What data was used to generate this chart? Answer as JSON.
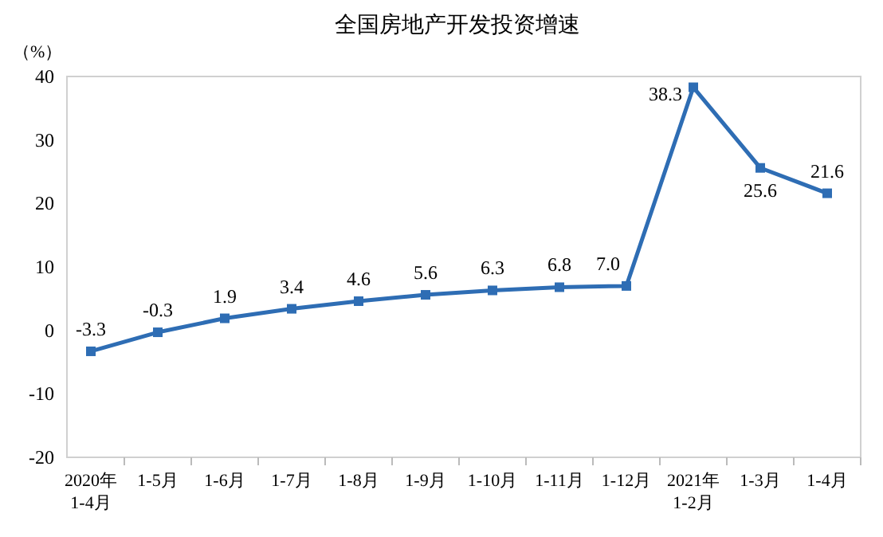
{
  "chart_data": {
    "type": "line",
    "title": "全国房地产开发投资增速",
    "ylabel": "（%）",
    "categories": [
      "2020年\n1-4月",
      "1-5月",
      "1-6月",
      "1-7月",
      "1-8月",
      "1-9月",
      "1-10月",
      "1-11月",
      "1-12月",
      "2021年\n1-2月",
      "1-3月",
      "1-4月"
    ],
    "series": [
      {
        "color": "#2e6db4",
        "values": [
          -3.3,
          -0.3,
          1.9,
          3.4,
          4.6,
          5.6,
          6.3,
          6.8,
          7.0,
          38.3,
          25.6,
          21.6
        ],
        "value_labels": [
          "-3.3",
          "-0.3",
          "1.9",
          "3.4",
          "4.6",
          "5.6",
          "6.3",
          "6.8",
          "7.0",
          "38.3",
          "25.6",
          "21.6"
        ]
      }
    ],
    "ylim": [
      -20,
      40
    ],
    "yticks": [
      -20,
      -10,
      0,
      10,
      20,
      30,
      40
    ],
    "grid": false,
    "marker": "square",
    "line_style": "solid"
  }
}
